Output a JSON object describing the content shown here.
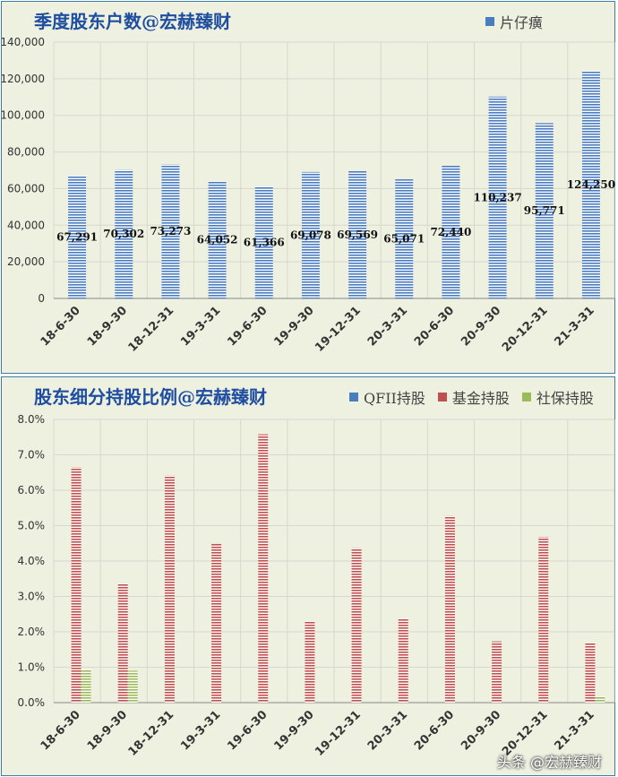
{
  "charts": [
    {
      "title": "季度股东户数@宏赫臻财",
      "chart_data": {
        "type": "bar",
        "categories": [
          "18-6-30",
          "18-9-30",
          "18-12-31",
          "19-3-31",
          "19-6-30",
          "19-9-30",
          "19-12-31",
          "20-3-31",
          "20-6-30",
          "20-9-30",
          "20-12-31",
          "21-3-31"
        ],
        "series": [
          {
            "name": "片仔癀",
            "values": [
              67291,
              70302,
              73273,
              64052,
              61366,
              69078,
              69569,
              65071,
              72440,
              110237,
              95771,
              124250
            ],
            "color": "#4a7cc0"
          }
        ],
        "data_labels": [
          "67,291",
          "70,302",
          "73,273",
          "64,052",
          "61,366",
          "69,078",
          "69,569",
          "65,071",
          "72,440",
          "110,237",
          "95,771",
          "124,250"
        ],
        "ylim": [
          0,
          140000
        ],
        "yticks": [
          "0",
          "20,000",
          "40,000",
          "60,000",
          "80,000",
          "100,000",
          "120,000",
          "140,000"
        ],
        "ytick_values": [
          0,
          20000,
          40000,
          60000,
          80000,
          100000,
          120000,
          140000
        ],
        "grid": true,
        "legend_position": "top-right"
      }
    },
    {
      "title": "股东细分持股比例@宏赫臻财",
      "chart_data": {
        "type": "bar",
        "categories": [
          "18-6-30",
          "18-9-30",
          "18-12-31",
          "19-3-31",
          "19-6-30",
          "19-9-30",
          "19-12-31",
          "20-3-31",
          "20-6-30",
          "20-9-30",
          "20-12-31",
          "21-3-31"
        ],
        "series": [
          {
            "name": "QFII持股",
            "values": [
              0,
              0,
              0,
              0,
              0,
              0,
              0,
              0,
              0,
              0,
              0,
              0
            ],
            "color": "#4a7cc0"
          },
          {
            "name": "基金持股",
            "values": [
              6.65,
              3.37,
              6.42,
              4.48,
              7.58,
              2.3,
              4.37,
              2.38,
              5.28,
              1.73,
              4.68,
              1.68
            ],
            "color": "#c0504d"
          },
          {
            "name": "社保持股",
            "values": [
              0.94,
              0.9,
              0,
              0,
              0,
              0,
              0,
              0,
              0,
              0,
              0,
              0.18
            ],
            "color": "#9bbb59"
          }
        ],
        "ylim": [
          0,
          8
        ],
        "yticks": [
          "0.0%",
          "1.0%",
          "2.0%",
          "3.0%",
          "4.0%",
          "5.0%",
          "6.0%",
          "7.0%",
          "8.0%"
        ],
        "ytick_values": [
          0,
          1,
          2,
          3,
          4,
          5,
          6,
          7,
          8
        ],
        "grid": true,
        "legend_position": "top-right"
      }
    }
  ],
  "watermark": "头条 @宏赫臻财"
}
